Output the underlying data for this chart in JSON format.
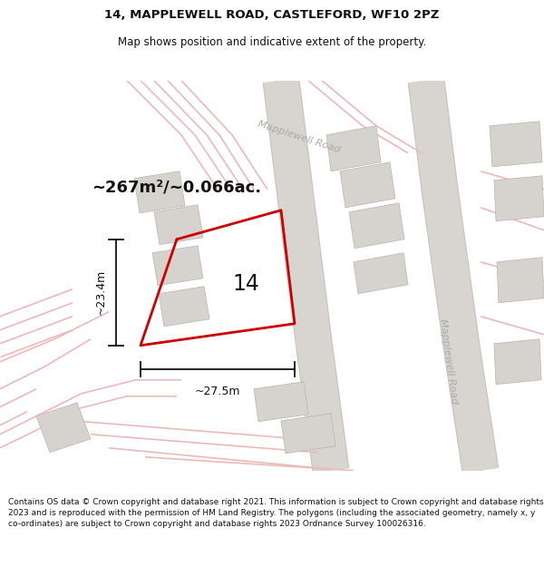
{
  "title_line1": "14, MAPPLEWELL ROAD, CASTLEFORD, WF10 2PZ",
  "title_line2": "Map shows position and indicative extent of the property.",
  "area_text": "~267m²/~0.066ac.",
  "number_label": "14",
  "dim_vertical": "~23.4m",
  "dim_horizontal": "~27.5m",
  "road_label_top": "Mapplewell Road",
  "road_label_bottom": "Mapplewell Road",
  "footer_text": "Contains OS data © Crown copyright and database right 2021. This information is subject to Crown copyright and database rights 2023 and is reproduced with the permission of HM Land Registry. The polygons (including the associated geometry, namely x, y co-ordinates) are subject to Crown copyright and database rights 2023 Ordnance Survey 100026316.",
  "bg_color": "#f8f6f4",
  "plot_color": "#cc0000",
  "plot_lw": 2.0,
  "building_color": "#d6d2ce",
  "building_edge": "#b8b4b0",
  "road_gray": "#d8d4d0",
  "road_pink_light": "#f5d0d0",
  "road_pink_mid": "#edb8b8",
  "title_fs": 9.5,
  "subtitle_fs": 8.5,
  "area_fs": 13,
  "num_fs": 17,
  "dim_fs": 9,
  "road_lbl_fs": 8,
  "footer_fs": 6.5
}
